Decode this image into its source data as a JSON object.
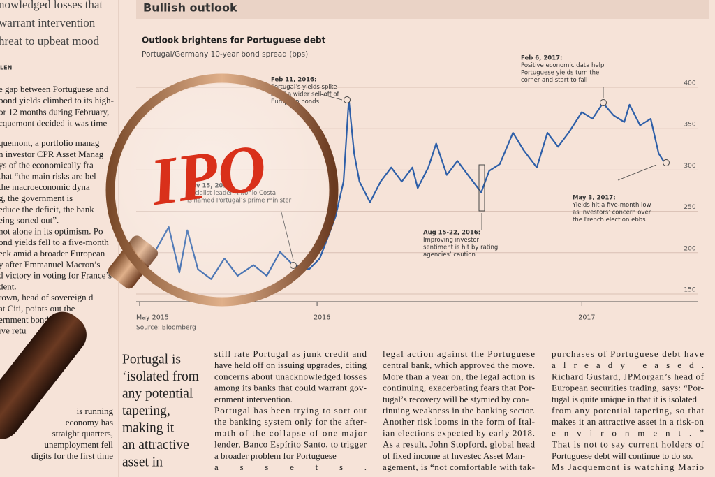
{
  "section_title": "Bullish outlook",
  "chart_data": {
    "type": "line",
    "title": "Outlook brightens for Portuguese debt",
    "subtitle": "Portugal/Germany 10-year bond spread (bps)",
    "source": "Source: Bloomberg",
    "color": "#2e5fa8",
    "x": [
      2015.35,
      2015.44,
      2015.48,
      2015.51,
      2015.55,
      2015.6,
      2015.65,
      2015.7,
      2015.76,
      2015.81,
      2015.86,
      2015.91,
      2015.97,
      2016.01,
      2016.04,
      2016.07,
      2016.1,
      2016.12,
      2016.14,
      2016.16,
      2016.2,
      2016.24,
      2016.28,
      2016.32,
      2016.36,
      2016.38,
      2016.42,
      2016.45,
      2016.49,
      2016.53,
      2016.57,
      2016.62,
      2016.65,
      2016.69,
      2016.74,
      2016.78,
      2016.83,
      2016.87,
      2016.91,
      2016.95,
      2017.0,
      2017.04,
      2017.08,
      2017.12,
      2017.16,
      2017.18,
      2017.22,
      2017.26,
      2017.29,
      2017.31
    ],
    "values": [
      180,
      231,
      176,
      227,
      180,
      168,
      193,
      172,
      185,
      172,
      201,
      185,
      180,
      193,
      218,
      244,
      286,
      385,
      320,
      286,
      261,
      286,
      303,
      286,
      303,
      278,
      303,
      332,
      294,
      311,
      294,
      273,
      299,
      307,
      345,
      324,
      303,
      345,
      328,
      345,
      370,
      362,
      381,
      366,
      358,
      379,
      354,
      362,
      320,
      310
    ],
    "xlim": [
      2015.33,
      2017.4
    ],
    "xticks": [
      {
        "value": 2015.33,
        "label": "May 2015"
      },
      2016,
      2017
    ],
    "ylim": [
      150,
      400
    ],
    "yticks": [
      400,
      350,
      300,
      250,
      200,
      150
    ],
    "grid": true,
    "annotations": [
      {
        "lines": [
          "Feb 11, 2016:",
          "Portugal’s yields spike",
          "amid a wider sell-off of",
          "European bonds"
        ]
      },
      {
        "lines": [
          "Feb 6, 2017:",
          "Positive economic data help",
          "Portuguese yields turn the",
          "corner and start to fall"
        ]
      },
      {
        "lines": [
          "Aug 15-22, 2016:",
          "Improving investor",
          "sentiment is hit by rating",
          "agencies’ caution"
        ]
      },
      {
        "lines": [
          "May 3, 2017:",
          "Yields hit a five-month low",
          "as investors’ concern over",
          "the French election ebbs"
        ]
      },
      {
        "lines": [
          "Nov 15, 2015:",
          "Socialist leader António Costa",
          "is named Portugal’s prime minister"
        ]
      }
    ]
  },
  "lens": {
    "text": "IPO"
  },
  "left_column": {
    "headlines": [
      "nowledged losses that",
      "warrant intervention",
      "hreat to upbeat mood"
    ],
    "byline": "LEN",
    "block1": [
      "e gap between Portuguese and",
      "bond yields climbed to its high-",
      "or 12 months during February,",
      "cquemont decided it was time"
    ],
    "block2": [
      "quemont, a portfolio manag",
      "n investor CPR Asset Manag",
      "ys of the economically fra",
      "that “the main risks are bel",
      "the macroeconomic dyna",
      "g, the government is",
      "educe the deficit, the bank",
      "eing sorted out”.",
      "not alone in its optimism. Po",
      "ond yields fell to a five-month",
      "eek amid a broader European",
      "y after Emmanuel Macron’s",
      "d victory in voting for France’s",
      "dent.",
      "rown, head of sovereign d",
      "at Citi, points out the",
      "ernment bond",
      "ive retu"
    ],
    "block3": [
      "is running",
      "economy has",
      "straight quarters,",
      "unemployment fell",
      "digits for the first time"
    ]
  },
  "pull_quote": [
    "Portugal is",
    "‘isolated from",
    "any potential",
    "tapering,",
    "making it",
    "an attractive",
    "asset in"
  ],
  "columns": [
    [
      "still rate Portugal as junk credit and",
      "have held off on issuing upgrades, citing",
      "concerns about unacknowledged losses",
      "among its banks that could warrant gov-",
      "ernment intervention.",
      "Portugal has been trying to sort out",
      "the banking system only for the after-",
      "math of the collapse of one major",
      "lender, Banco Espírito Santo, to trigger",
      "a broader problem for Portuguese",
      "assets."
    ],
    [
      "legal action against the Portuguese",
      "central bank, which approved the move.",
      "More than a year on, the legal action is",
      "continuing, exacerbating fears that Por-",
      "tugal’s recovery will be stymied by con-",
      "tinuing weakness in the banking sector.",
      "Another risk looms in the form of Ital-",
      "ian elections expected by early 2018.",
      "As a result, John Stopford, global head",
      "of fixed income at Investec Asset Man-",
      "agement, is “not comfortable with tak-"
    ],
    [
      "purchases of Portuguese debt have",
      "already eased.",
      "Richard Gustard, JPMorgan’s head of",
      "European securities trading, says: “Por-",
      "tugal is quite unique in that it is isolated",
      "from any potential tapering, so that",
      "makes it an attractive asset in a risk-on",
      "environment.”",
      "That is not to say current holders of",
      "Portuguese debt will continue to do so.",
      "Ms Jacquemont is watching Mario"
    ]
  ]
}
